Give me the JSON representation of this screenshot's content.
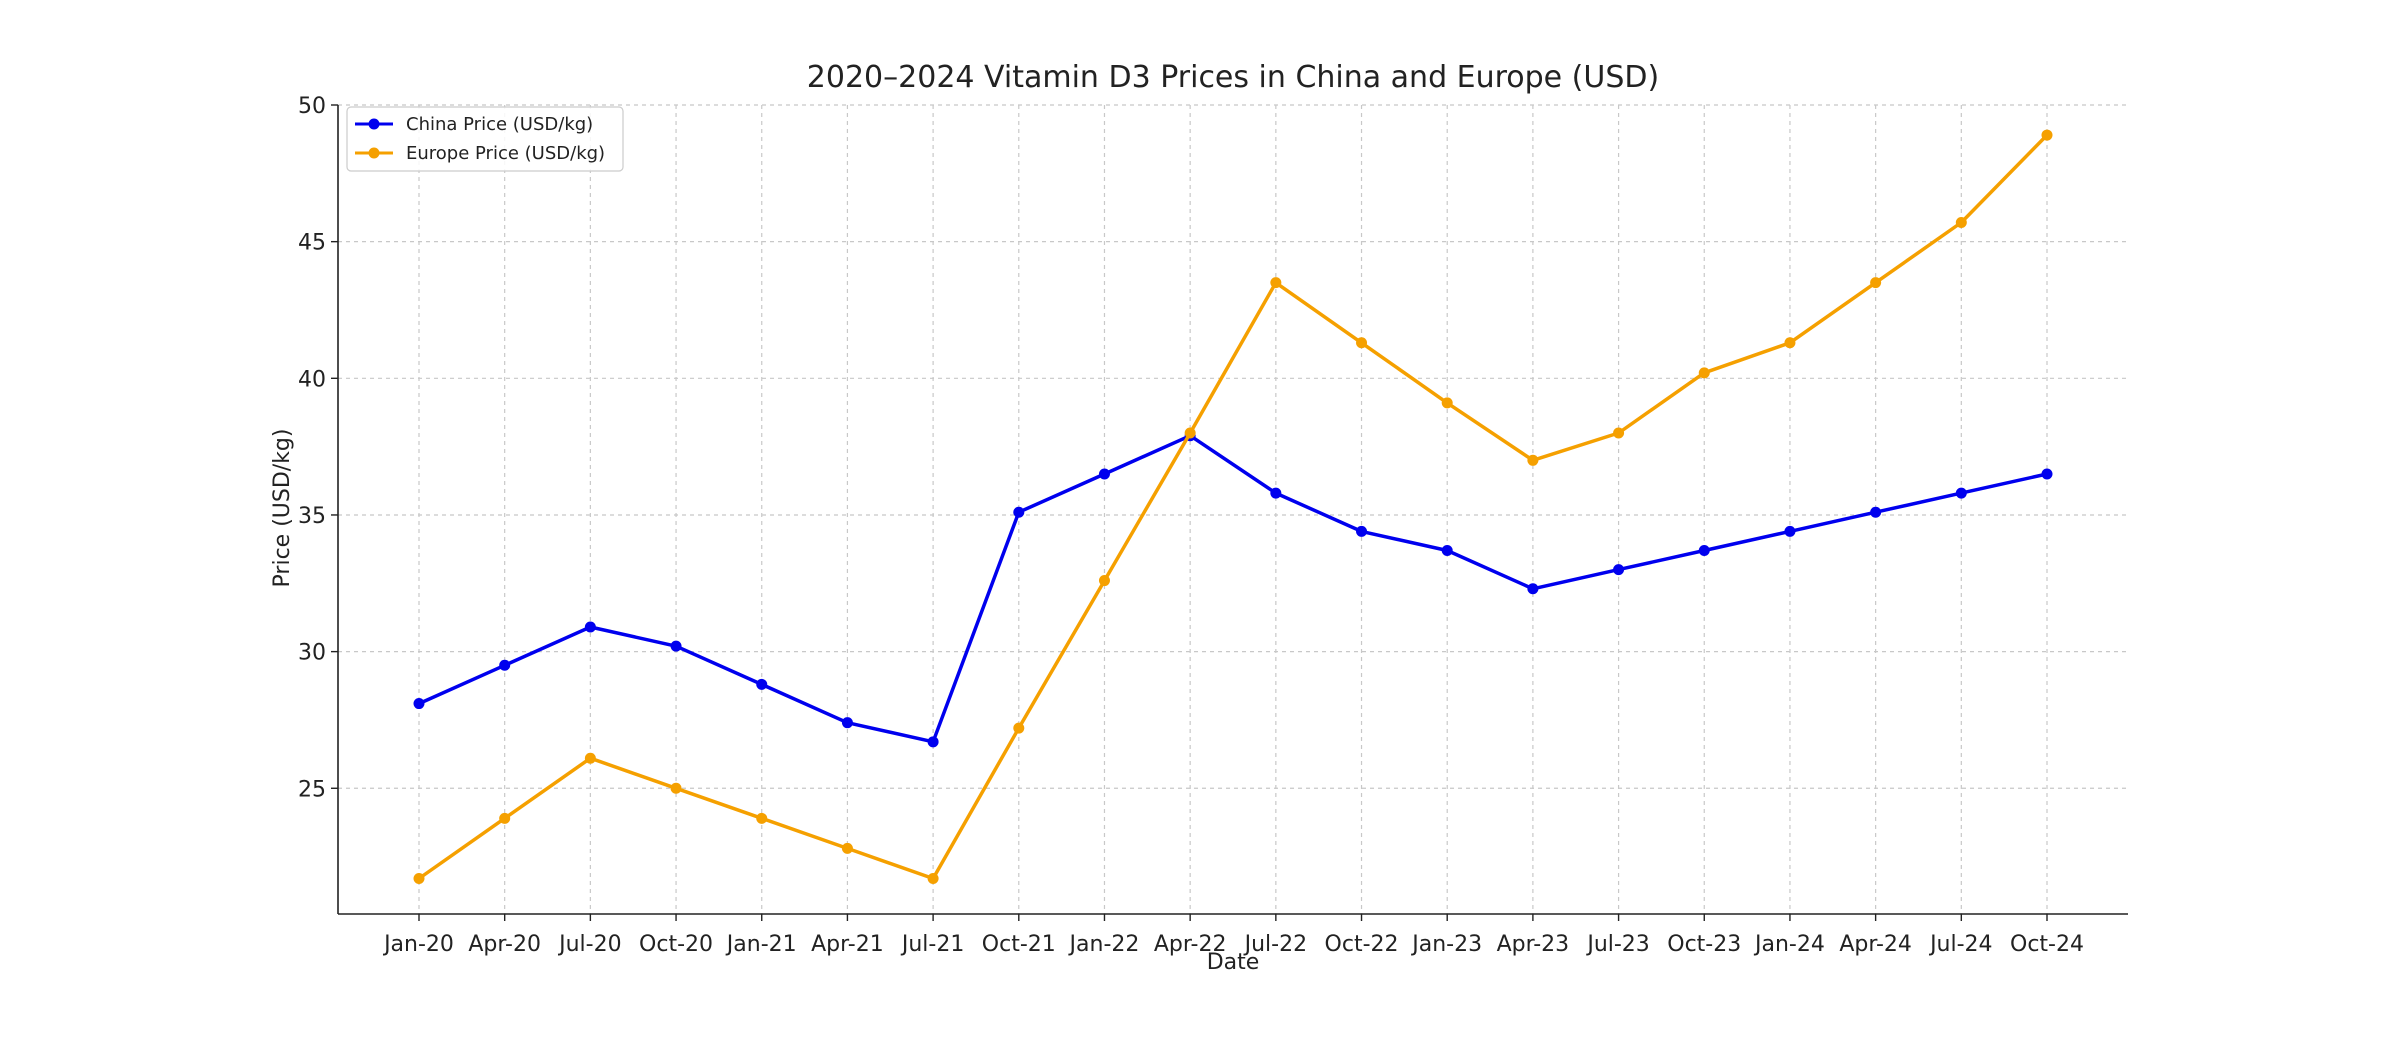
{
  "chart_data": {
    "type": "line",
    "title": "2020–2024 Vitamin D3 Prices in China and Europe (USD)",
    "xlabel": "Date",
    "ylabel": "Price (USD/kg)",
    "categories": [
      "Jan-20",
      "Apr-20",
      "Jul-20",
      "Oct-20",
      "Jan-21",
      "Apr-21",
      "Jul-21",
      "Oct-21",
      "Jan-22",
      "Apr-22",
      "Jul-22",
      "Oct-22",
      "Jan-23",
      "Apr-23",
      "Jul-23",
      "Oct-23",
      "Jan-24",
      "Apr-24",
      "Jul-24",
      "Oct-24"
    ],
    "ylim": [
      20.4,
      50.0
    ],
    "yticks": [
      25,
      30,
      35,
      40,
      45,
      50
    ],
    "grid": true,
    "legend_position": "top-left",
    "series": [
      {
        "name": "China Price (USD/kg)",
        "color": "#0000ee",
        "values": [
          28.1,
          29.5,
          30.9,
          30.2,
          28.8,
          27.4,
          26.7,
          35.1,
          36.5,
          37.9,
          35.8,
          34.4,
          33.7,
          32.3,
          33.0,
          33.7,
          34.4,
          35.1,
          35.8,
          36.5
        ]
      },
      {
        "name": "Europe Price (USD/kg)",
        "color": "#f5a000",
        "values": [
          21.7,
          23.9,
          26.1,
          25.0,
          23.9,
          22.8,
          21.7,
          27.2,
          32.6,
          38.0,
          43.5,
          41.3,
          39.1,
          37.0,
          38.0,
          40.2,
          41.3,
          43.5,
          45.7,
          48.9
        ]
      }
    ]
  }
}
